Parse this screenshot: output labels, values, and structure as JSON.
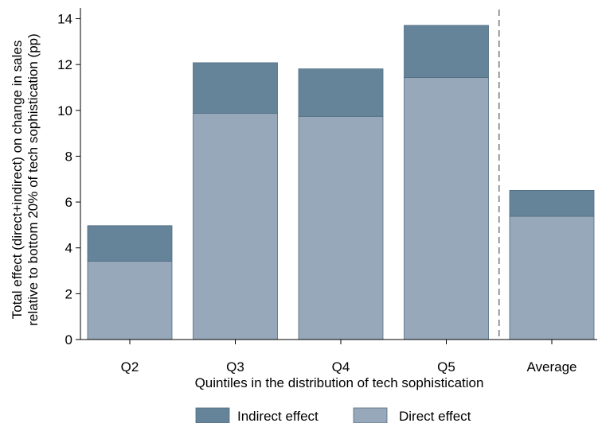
{
  "chart_data": {
    "type": "bar",
    "stacked": true,
    "title": "",
    "xlabel": "Quintiles in the distribution of tech sophistication",
    "ylabel_lines": [
      "Total effect (direct+indirect) on change in sales",
      "relative to bottom 20% of tech sophistication (pp)"
    ],
    "categories": [
      "Q2",
      "Q3",
      "Q4",
      "Q5",
      "Average"
    ],
    "series": [
      {
        "name": "Direct effect",
        "values": [
          3.42,
          9.87,
          9.74,
          11.43,
          5.38
        ],
        "color": "#96a8ba"
      },
      {
        "name": "Indirect effect",
        "values": [
          1.55,
          2.21,
          2.07,
          2.28,
          1.13
        ],
        "color": "#65849a"
      }
    ],
    "ylim": [
      0,
      14.4
    ],
    "yticks": [
      0,
      2,
      4,
      6,
      8,
      10,
      12,
      14
    ],
    "grid": false,
    "separator_before_category": "Average",
    "legend": {
      "placement": "bottom-center",
      "entries": [
        "Indirect effect",
        "Direct effect"
      ]
    }
  }
}
